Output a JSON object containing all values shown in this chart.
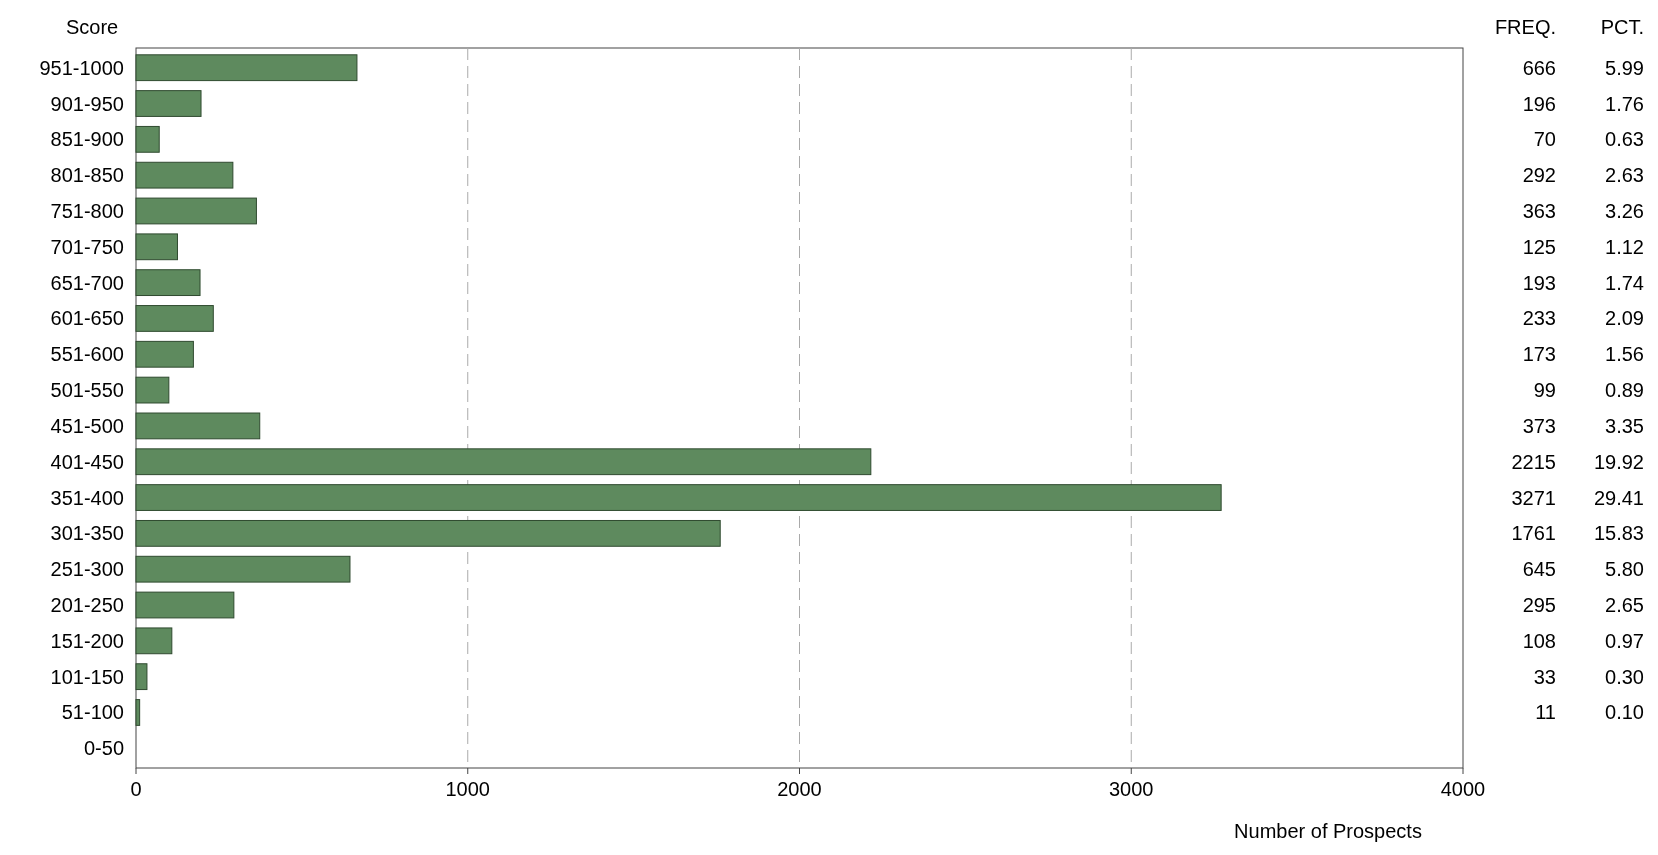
{
  "chart_data": {
    "type": "bar",
    "orientation": "horizontal",
    "ylabel": "Score",
    "xlabel": "Number of Prospects",
    "categories": [
      "951-1000",
      "901-950",
      "851-900",
      "801-850",
      "751-800",
      "701-750",
      "651-700",
      "601-650",
      "551-600",
      "501-550",
      "451-500",
      "401-450",
      "351-400",
      "301-350",
      "251-300",
      "201-250",
      "151-200",
      "101-150",
      "51-100",
      "0-50"
    ],
    "values": [
      666,
      196,
      70,
      292,
      363,
      125,
      193,
      233,
      173,
      99,
      373,
      2215,
      3271,
      1761,
      645,
      295,
      108,
      33,
      11,
      null
    ],
    "data_labels": true,
    "color": "#5e8a5e",
    "xlim": [
      0,
      4000
    ],
    "xticks": [
      0,
      1000,
      2000,
      3000,
      4000
    ],
    "grid": "x",
    "annotations": [
      "FREQ.",
      "PCT.",
      "5.99",
      "1.76",
      "0.63",
      "2.63",
      "3.26",
      "1.12",
      "1.74",
      "2.09",
      "1.56",
      "0.89",
      "3.35",
      "19.92",
      "29.41",
      "15.83",
      "5.80",
      "2.65",
      "0.97",
      "0.30",
      "0.10"
    ]
  }
}
